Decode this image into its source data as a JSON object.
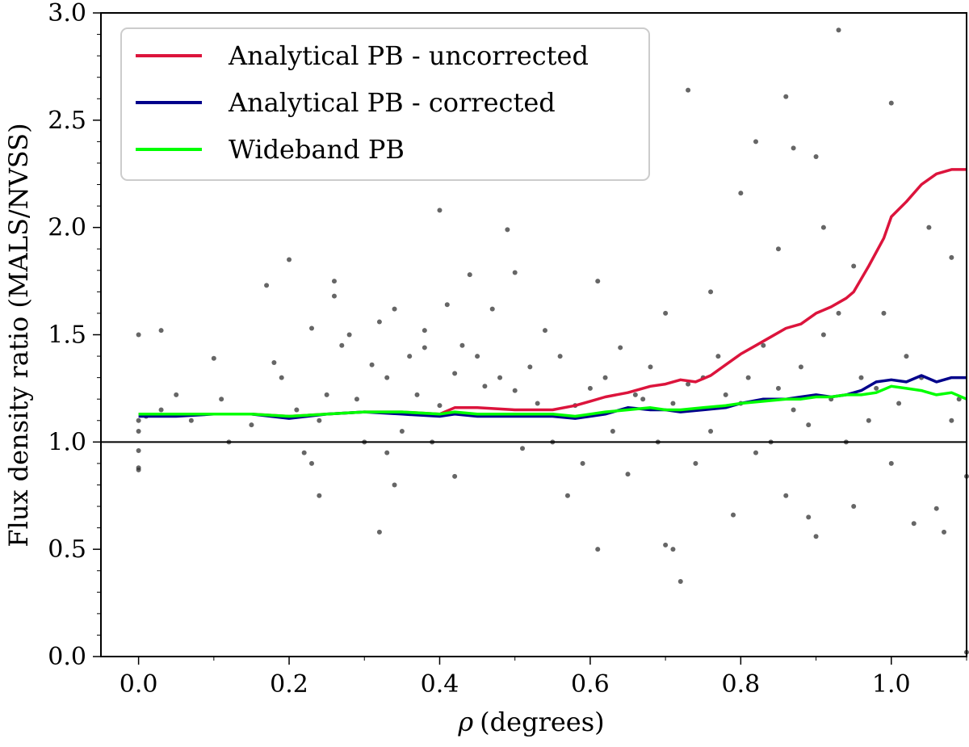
{
  "chart_data": {
    "type": "line",
    "title": "",
    "xlabel_symbol": "ρ",
    "xlabel_text": "(degrees)",
    "ylabel": "Flux density ratio (MALS/NVSS)",
    "xlim": [
      -0.05,
      1.1
    ],
    "ylim": [
      0.0,
      3.0
    ],
    "xticks": [
      0.0,
      0.2,
      0.4,
      0.6,
      0.8,
      1.0
    ],
    "xtick_labels": [
      "0.0",
      "0.2",
      "0.4",
      "0.6",
      "0.8",
      "1.0"
    ],
    "yticks": [
      0.0,
      0.5,
      1.0,
      1.5,
      2.0,
      2.5,
      3.0
    ],
    "ytick_labels": [
      "0.0",
      "0.5",
      "1.0",
      "1.5",
      "2.0",
      "2.5",
      "3.0"
    ],
    "reference_line": {
      "y": 1.0,
      "color": "#000000"
    },
    "legend": {
      "location": "upper-left"
    },
    "series": [
      {
        "name": "Analytical PB - uncorrected",
        "color": "#dc143c",
        "x": [
          0.0,
          0.05,
          0.1,
          0.15,
          0.2,
          0.25,
          0.3,
          0.35,
          0.4,
          0.42,
          0.45,
          0.5,
          0.55,
          0.58,
          0.6,
          0.62,
          0.65,
          0.68,
          0.7,
          0.72,
          0.74,
          0.76,
          0.78,
          0.8,
          0.82,
          0.84,
          0.86,
          0.88,
          0.9,
          0.92,
          0.94,
          0.95,
          0.97,
          0.99,
          1.0,
          1.02,
          1.04,
          1.06,
          1.08,
          1.1
        ],
        "values": [
          1.13,
          1.13,
          1.13,
          1.13,
          1.12,
          1.13,
          1.14,
          1.14,
          1.13,
          1.16,
          1.16,
          1.15,
          1.15,
          1.17,
          1.19,
          1.21,
          1.23,
          1.26,
          1.27,
          1.29,
          1.28,
          1.31,
          1.36,
          1.41,
          1.45,
          1.49,
          1.53,
          1.55,
          1.6,
          1.63,
          1.67,
          1.7,
          1.82,
          1.95,
          2.05,
          2.12,
          2.2,
          2.25,
          2.27,
          2.27
        ]
      },
      {
        "name": "Analytical PB - corrected",
        "color": "#00008b",
        "x": [
          0.0,
          0.05,
          0.1,
          0.15,
          0.2,
          0.25,
          0.3,
          0.35,
          0.4,
          0.42,
          0.45,
          0.5,
          0.55,
          0.58,
          0.6,
          0.62,
          0.65,
          0.68,
          0.7,
          0.72,
          0.75,
          0.78,
          0.8,
          0.83,
          0.86,
          0.88,
          0.9,
          0.92,
          0.94,
          0.96,
          0.98,
          1.0,
          1.02,
          1.04,
          1.06,
          1.08,
          1.1
        ],
        "values": [
          1.12,
          1.12,
          1.13,
          1.13,
          1.11,
          1.13,
          1.14,
          1.13,
          1.12,
          1.13,
          1.12,
          1.12,
          1.12,
          1.11,
          1.12,
          1.13,
          1.16,
          1.15,
          1.15,
          1.14,
          1.15,
          1.16,
          1.18,
          1.2,
          1.2,
          1.21,
          1.22,
          1.21,
          1.22,
          1.24,
          1.28,
          1.29,
          1.28,
          1.31,
          1.28,
          1.3,
          1.3
        ]
      },
      {
        "name": "Wideband PB",
        "color": "#00ff00",
        "x": [
          0.0,
          0.05,
          0.1,
          0.15,
          0.2,
          0.25,
          0.3,
          0.35,
          0.4,
          0.42,
          0.45,
          0.5,
          0.55,
          0.58,
          0.6,
          0.62,
          0.65,
          0.68,
          0.7,
          0.72,
          0.75,
          0.78,
          0.8,
          0.83,
          0.86,
          0.88,
          0.9,
          0.92,
          0.94,
          0.96,
          0.98,
          1.0,
          1.02,
          1.04,
          1.06,
          1.08,
          1.1
        ],
        "values": [
          1.13,
          1.13,
          1.13,
          1.13,
          1.12,
          1.13,
          1.14,
          1.14,
          1.13,
          1.14,
          1.13,
          1.13,
          1.13,
          1.12,
          1.13,
          1.14,
          1.15,
          1.16,
          1.15,
          1.15,
          1.16,
          1.17,
          1.18,
          1.19,
          1.2,
          1.2,
          1.21,
          1.21,
          1.22,
          1.22,
          1.23,
          1.26,
          1.25,
          1.24,
          1.22,
          1.23,
          1.2
        ]
      }
    ],
    "scatter": {
      "color": "#333333",
      "points": [
        [
          0.0,
          1.5
        ],
        [
          0.0,
          0.87
        ],
        [
          0.0,
          0.88
        ],
        [
          0.0,
          1.05
        ],
        [
          0.0,
          0.96
        ],
        [
          0.0,
          1.1
        ],
        [
          0.01,
          1.12
        ],
        [
          0.03,
          1.52
        ],
        [
          0.03,
          1.15
        ],
        [
          0.05,
          1.22
        ],
        [
          0.07,
          1.1
        ],
        [
          0.1,
          1.39
        ],
        [
          0.11,
          1.2
        ],
        [
          0.12,
          1.0
        ],
        [
          0.15,
          1.08
        ],
        [
          0.17,
          1.73
        ],
        [
          0.18,
          1.37
        ],
        [
          0.19,
          1.3
        ],
        [
          0.2,
          1.85
        ],
        [
          0.21,
          1.15
        ],
        [
          0.22,
          0.95
        ],
        [
          0.23,
          1.53
        ],
        [
          0.23,
          0.9
        ],
        [
          0.24,
          0.75
        ],
        [
          0.24,
          1.1
        ],
        [
          0.25,
          1.22
        ],
        [
          0.26,
          1.75
        ],
        [
          0.26,
          1.68
        ],
        [
          0.27,
          1.45
        ],
        [
          0.28,
          1.5
        ],
        [
          0.29,
          1.2
        ],
        [
          0.3,
          1.0
        ],
        [
          0.31,
          1.36
        ],
        [
          0.32,
          0.58
        ],
        [
          0.32,
          1.56
        ],
        [
          0.33,
          0.95
        ],
        [
          0.33,
          1.3
        ],
        [
          0.34,
          0.8
        ],
        [
          0.34,
          1.62
        ],
        [
          0.35,
          1.05
        ],
        [
          0.36,
          1.4
        ],
        [
          0.37,
          1.22
        ],
        [
          0.38,
          1.44
        ],
        [
          0.38,
          1.52
        ],
        [
          0.39,
          1.0
        ],
        [
          0.4,
          2.08
        ],
        [
          0.4,
          1.17
        ],
        [
          0.41,
          1.64
        ],
        [
          0.42,
          0.84
        ],
        [
          0.42,
          1.32
        ],
        [
          0.43,
          1.45
        ],
        [
          0.44,
          1.78
        ],
        [
          0.45,
          1.4
        ],
        [
          0.46,
          1.26
        ],
        [
          0.47,
          1.62
        ],
        [
          0.48,
          1.3
        ],
        [
          0.49,
          1.99
        ],
        [
          0.5,
          1.79
        ],
        [
          0.5,
          1.24
        ],
        [
          0.51,
          0.97
        ],
        [
          0.52,
          1.35
        ],
        [
          0.53,
          1.18
        ],
        [
          0.54,
          1.52
        ],
        [
          0.55,
          1.0
        ],
        [
          0.56,
          1.4
        ],
        [
          0.57,
          0.75
        ],
        [
          0.58,
          1.17
        ],
        [
          0.59,
          0.9
        ],
        [
          0.6,
          1.25
        ],
        [
          0.61,
          0.5
        ],
        [
          0.61,
          1.75
        ],
        [
          0.62,
          1.3
        ],
        [
          0.63,
          1.05
        ],
        [
          0.64,
          1.44
        ],
        [
          0.65,
          0.85
        ],
        [
          0.66,
          1.22
        ],
        [
          0.67,
          1.2
        ],
        [
          0.68,
          1.35
        ],
        [
          0.69,
          1.0
        ],
        [
          0.7,
          0.52
        ],
        [
          0.7,
          1.6
        ],
        [
          0.71,
          0.5
        ],
        [
          0.71,
          1.18
        ],
        [
          0.72,
          0.35
        ],
        [
          0.73,
          2.64
        ],
        [
          0.73,
          1.27
        ],
        [
          0.74,
          0.9
        ],
        [
          0.75,
          1.3
        ],
        [
          0.76,
          1.7
        ],
        [
          0.76,
          1.05
        ],
        [
          0.77,
          1.4
        ],
        [
          0.78,
          1.22
        ],
        [
          0.79,
          0.66
        ],
        [
          0.8,
          2.16
        ],
        [
          0.8,
          1.18
        ],
        [
          0.81,
          1.3
        ],
        [
          0.82,
          2.4
        ],
        [
          0.82,
          0.95
        ],
        [
          0.83,
          1.45
        ],
        [
          0.84,
          1.0
        ],
        [
          0.85,
          1.9
        ],
        [
          0.85,
          1.25
        ],
        [
          0.86,
          2.61
        ],
        [
          0.86,
          0.75
        ],
        [
          0.87,
          2.37
        ],
        [
          0.87,
          1.15
        ],
        [
          0.88,
          1.35
        ],
        [
          0.89,
          0.65
        ],
        [
          0.89,
          1.08
        ],
        [
          0.9,
          2.33
        ],
        [
          0.9,
          0.56
        ],
        [
          0.91,
          2.0
        ],
        [
          0.91,
          1.5
        ],
        [
          0.92,
          1.2
        ],
        [
          0.93,
          2.92
        ],
        [
          0.93,
          1.6
        ],
        [
          0.94,
          1.0
        ],
        [
          0.95,
          1.82
        ],
        [
          0.95,
          0.7
        ],
        [
          0.96,
          1.3
        ],
        [
          0.97,
          1.1
        ],
        [
          0.98,
          1.25
        ],
        [
          0.99,
          1.6
        ],
        [
          1.0,
          2.58
        ],
        [
          1.0,
          0.9
        ],
        [
          1.01,
          1.18
        ],
        [
          1.02,
          1.4
        ],
        [
          1.03,
          0.62
        ],
        [
          1.04,
          1.3
        ],
        [
          1.05,
          2.0
        ],
        [
          1.06,
          0.69
        ],
        [
          1.07,
          0.58
        ],
        [
          1.08,
          1.86
        ],
        [
          1.08,
          1.1
        ],
        [
          1.09,
          1.2
        ],
        [
          1.1,
          0.84
        ],
        [
          1.1,
          0.02
        ]
      ]
    }
  }
}
